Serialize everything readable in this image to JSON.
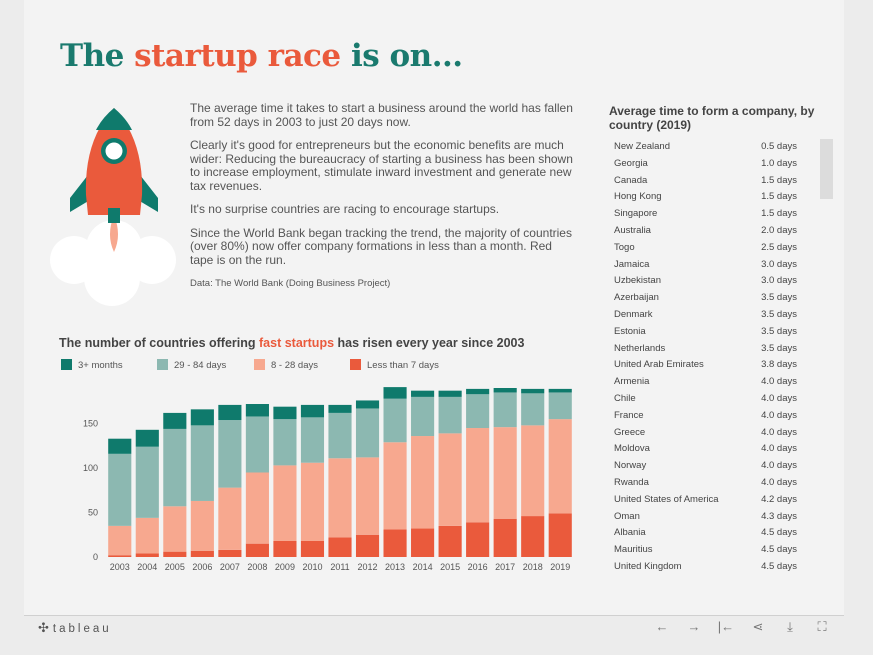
{
  "title": {
    "part1": "The ",
    "highlight": "startup race",
    "part2": " is on..."
  },
  "intro": {
    "p1": "The average time it takes to start a business around the world has fallen from 52 days in 2003 to just 20 days now.",
    "p2": "Clearly it's good for entrepreneurs but the economic benefits are much wider: Reducing the bureaucracy of starting a business has been shown to increase employment, stimulate inward investment and generate new tax revenues.",
    "p3": "It's no surprise countries are racing to encourage startups.",
    "p4": "Since the World Bank began tracking the trend, the majority of countries (over 80%) now offer company formations in less than a month. Red tape is on the run.",
    "source": "Data: The World Bank (Doing Business Project)"
  },
  "chart_header": {
    "part1": "The number of countries offering ",
    "highlight": "fast startups",
    "part2": " has risen every year since 2003"
  },
  "colors": {
    "teal_dark": "#0f7a6c",
    "teal_light": "#8cb8b1",
    "salmon": "#f7a88f",
    "red": "#ea5a3c",
    "title_teal": "#1a7a6e"
  },
  "legend": [
    {
      "label": "3+ months",
      "color": "#0f7a6c"
    },
    {
      "label": "29 - 84 days",
      "color": "#8cb8b1"
    },
    {
      "label": "8 - 28 days",
      "color": "#f7a88f"
    },
    {
      "label": "Less than 7 days",
      "color": "#ea5a3c"
    }
  ],
  "chart_data": {
    "type": "bar",
    "stacked": true,
    "title": "The number of countries offering fast startups has risen every year since 2003",
    "categories": [
      "2003",
      "2004",
      "2005",
      "2006",
      "2007",
      "2008",
      "2009",
      "2010",
      "2011",
      "2012",
      "2013",
      "2014",
      "2015",
      "2016",
      "2017",
      "2018",
      "2019"
    ],
    "series": [
      {
        "name": "Less than 7 days",
        "values": [
          2,
          4,
          6,
          7,
          8,
          15,
          18,
          18,
          22,
          25,
          31,
          32,
          35,
          39,
          43,
          46,
          49
        ]
      },
      {
        "name": "8 - 28 days",
        "values": [
          33,
          40,
          51,
          56,
          70,
          80,
          85,
          88,
          89,
          87,
          98,
          104,
          104,
          106,
          103,
          102,
          106
        ]
      },
      {
        "name": "29 - 84 days",
        "values": [
          81,
          80,
          87,
          85,
          76,
          63,
          52,
          51,
          51,
          55,
          49,
          44,
          41,
          38,
          39,
          36,
          30
        ]
      },
      {
        "name": "3+ months",
        "values": [
          17,
          19,
          18,
          18,
          17,
          14,
          14,
          14,
          9,
          9,
          13,
          7,
          7,
          6,
          5,
          5,
          4
        ]
      }
    ],
    "yticks": [
      0,
      50,
      100,
      150
    ],
    "ylim": [
      0,
      190
    ],
    "xlabel": "",
    "ylabel": ""
  },
  "table": {
    "title": "Average time to form a company, by country (2019)",
    "rows": [
      {
        "country": "New Zealand",
        "days": "0.5 days"
      },
      {
        "country": "Georgia",
        "days": "1.0 days"
      },
      {
        "country": "Canada",
        "days": "1.5 days"
      },
      {
        "country": "Hong Kong",
        "days": "1.5 days"
      },
      {
        "country": "Singapore",
        "days": "1.5 days"
      },
      {
        "country": "Australia",
        "days": "2.0 days"
      },
      {
        "country": "Togo",
        "days": "2.5 days"
      },
      {
        "country": "Jamaica",
        "days": "3.0 days"
      },
      {
        "country": "Uzbekistan",
        "days": "3.0 days"
      },
      {
        "country": "Azerbaijan",
        "days": "3.5 days"
      },
      {
        "country": "Denmark",
        "days": "3.5 days"
      },
      {
        "country": "Estonia",
        "days": "3.5 days"
      },
      {
        "country": "Netherlands",
        "days": "3.5 days"
      },
      {
        "country": "United Arab Emirates",
        "days": "3.8 days"
      },
      {
        "country": "Armenia",
        "days": "4.0 days"
      },
      {
        "country": "Chile",
        "days": "4.0 days"
      },
      {
        "country": "France",
        "days": "4.0 days"
      },
      {
        "country": "Greece",
        "days": "4.0 days"
      },
      {
        "country": "Moldova",
        "days": "4.0 days"
      },
      {
        "country": "Norway",
        "days": "4.0 days"
      },
      {
        "country": "Rwanda",
        "days": "4.0 days"
      },
      {
        "country": "United States of America",
        "days": "4.2 days"
      },
      {
        "country": "Oman",
        "days": "4.3 days"
      },
      {
        "country": "Albania",
        "days": "4.5 days"
      },
      {
        "country": "Mauritius",
        "days": "4.5 days"
      },
      {
        "country": "United Kingdom",
        "days": "4.5 days"
      }
    ]
  },
  "footer": {
    "logo": "tableau",
    "logo_icon": "tableau-logo-icon",
    "tools": [
      {
        "name": "undo-icon",
        "glyph": "←"
      },
      {
        "name": "redo-icon",
        "glyph": "→"
      },
      {
        "name": "revert-icon",
        "glyph": "|←"
      },
      {
        "name": "share-icon",
        "glyph": "⋖"
      },
      {
        "name": "download-icon",
        "glyph": "⤓"
      },
      {
        "name": "fullscreen-icon",
        "glyph": "⛶"
      }
    ]
  }
}
